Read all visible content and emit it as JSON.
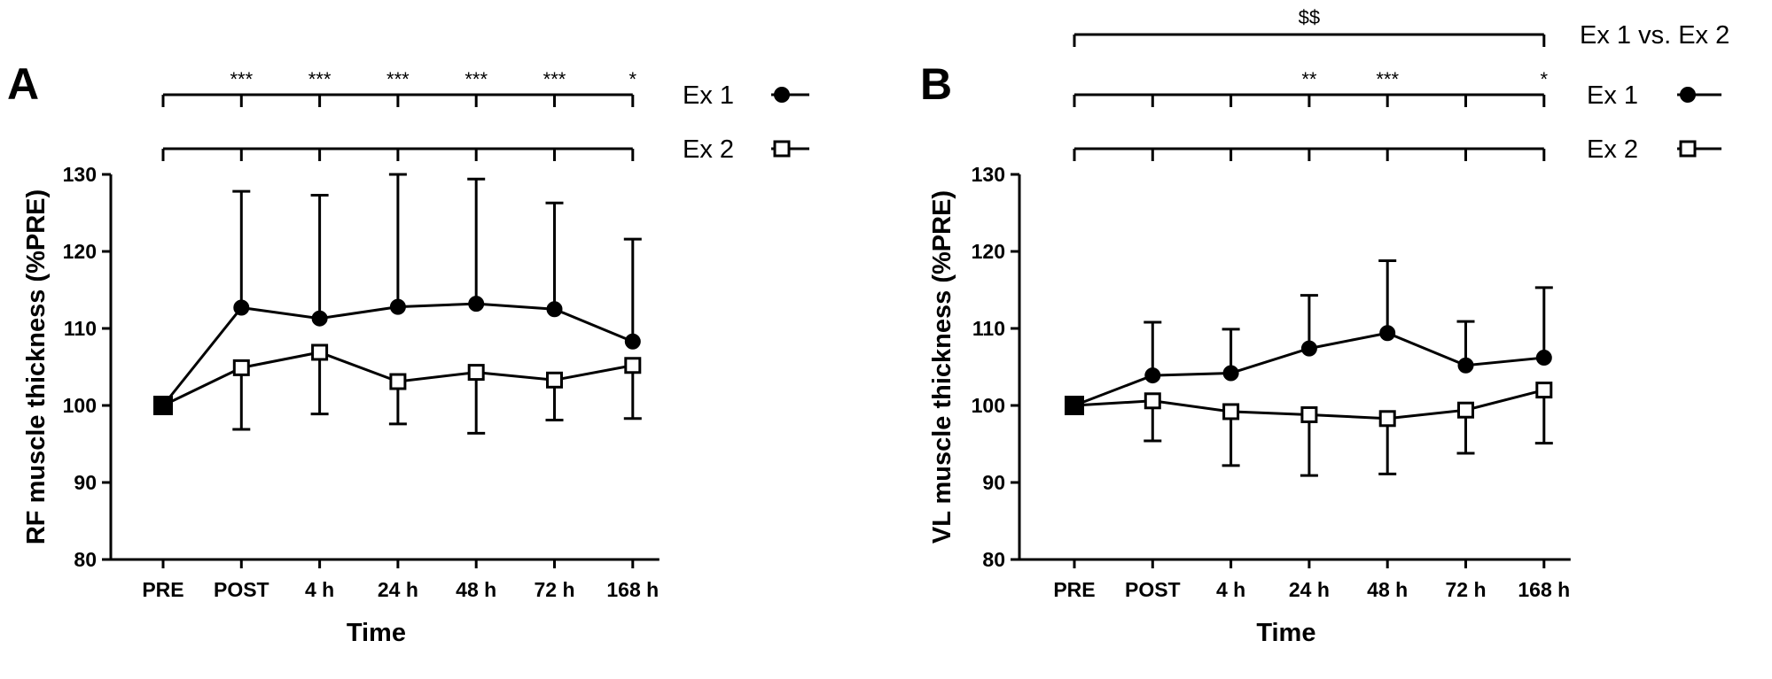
{
  "chart_data": [
    {
      "type": "line",
      "panel_label": "A",
      "xlabel": "Time",
      "ylabel": "RF muscle thickness (%PRE)",
      "categories": [
        "PRE",
        "POST",
        "4 h",
        "24 h",
        "48 h",
        "72 h",
        "168 h"
      ],
      "yticks": [
        "80",
        "90",
        "100",
        "110",
        "120",
        "130"
      ],
      "ylim": [
        80,
        130
      ],
      "series": [
        {
          "name": "Ex 1",
          "marker": "filled-circle",
          "values": [
            100,
            112.7,
            111.3,
            112.8,
            113.2,
            112.5,
            108.3
          ],
          "error_upper": [
            100,
            127.8,
            127.3,
            130.0,
            129.4,
            126.3,
            121.6
          ]
        },
        {
          "name": "Ex 2",
          "marker": "open-square",
          "values": [
            100,
            104.9,
            106.9,
            103.1,
            104.3,
            103.3,
            105.2
          ],
          "error_lower": [
            100,
            96.9,
            98.9,
            97.6,
            96.4,
            98.1,
            98.3
          ]
        }
      ],
      "significance": {
        "ex1_row": [
          "",
          "***",
          "***",
          "***",
          "***",
          "***",
          "*"
        ],
        "ex2_row": [
          "",
          "",
          "",
          "",
          "",
          "",
          ""
        ],
        "between_label": "",
        "between_mark": ""
      }
    },
    {
      "type": "line",
      "panel_label": "B",
      "xlabel": "Time",
      "ylabel": "VL muscle thickness (%PRE)",
      "categories": [
        "PRE",
        "POST",
        "4 h",
        "24 h",
        "48 h",
        "72 h",
        "168 h"
      ],
      "yticks": [
        "80",
        "90",
        "100",
        "110",
        "120",
        "130"
      ],
      "ylim": [
        80,
        130
      ],
      "series": [
        {
          "name": "Ex 1",
          "marker": "filled-circle",
          "values": [
            100,
            103.9,
            104.2,
            107.4,
            109.4,
            105.2,
            106.2
          ],
          "error_upper": [
            100,
            110.8,
            109.9,
            114.3,
            118.8,
            110.9,
            115.3
          ]
        },
        {
          "name": "Ex 2",
          "marker": "open-square",
          "values": [
            100,
            100.6,
            99.2,
            98.8,
            98.3,
            99.4,
            102.0
          ],
          "error_lower": [
            100,
            95.4,
            92.2,
            90.9,
            91.1,
            93.8,
            95.1
          ]
        }
      ],
      "significance": {
        "ex1_row": [
          "",
          "",
          "",
          "**",
          "***",
          "",
          "*"
        ],
        "ex2_row": [
          "",
          "",
          "",
          "",
          "",
          "",
          ""
        ],
        "between_label": "Ex 1 vs. Ex 2",
        "between_mark": "$$"
      }
    }
  ]
}
